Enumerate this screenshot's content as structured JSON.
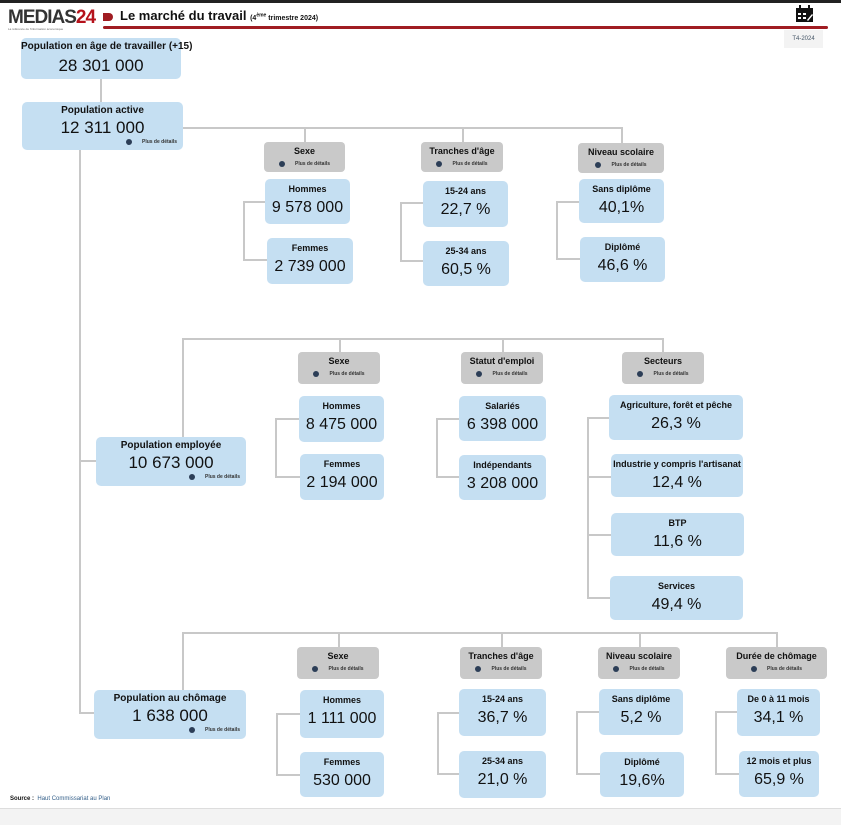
{
  "header": {
    "logo": "MEDIAS24",
    "logo_tagline": "La référence de l'information économique",
    "title": "Le marché du travail",
    "subtitle_prefix": "(4",
    "subtitle_sup": "ème",
    "subtitle_suffix": " trimestre 2024)",
    "period": "T4-2024",
    "calendar_icon": "calendar-icon",
    "accent": "#a01c22"
  },
  "more": "Plus de détails",
  "working_age": {
    "label": "Population en âge de travailler (+15)",
    "value": "28 301 000"
  },
  "active": {
    "label": "Population active",
    "value": "12 311 000",
    "sexe": {
      "label": "Sexe",
      "items": [
        {
          "label": "Hommes",
          "value": "9 578 000"
        },
        {
          "label": "Femmes",
          "value": "2 739 000"
        }
      ]
    },
    "age": {
      "label": "Tranches d'âge",
      "items": [
        {
          "label": "15-24 ans",
          "value": "22,7 %"
        },
        {
          "label": "25-34 ans",
          "value": "60,5 %"
        }
      ]
    },
    "school": {
      "label": "Niveau scolaire",
      "items": [
        {
          "label": "Sans diplôme",
          "value": "40,1%"
        },
        {
          "label": "Diplômé",
          "value": "46,6 %"
        }
      ]
    }
  },
  "employed": {
    "label": "Population employée",
    "value": "10 673 000",
    "sexe": {
      "label": "Sexe",
      "items": [
        {
          "label": "Hommes",
          "value": "8 475 000"
        },
        {
          "label": "Femmes",
          "value": "2 194 000"
        }
      ]
    },
    "status": {
      "label": "Statut d'emploi",
      "items": [
        {
          "label": "Salariés",
          "value": "6 398 000"
        },
        {
          "label": "Indépendants",
          "value": "3 208 000"
        }
      ]
    },
    "sectors": {
      "label": "Secteurs",
      "items": [
        {
          "label": "Agriculture, forêt et pêche",
          "value": "26,3 %"
        },
        {
          "label": "Industrie y compris l'artisanat",
          "value": "12,4 %"
        },
        {
          "label": "BTP",
          "value": "11,6 %"
        },
        {
          "label": "Services",
          "value": "49,4 %"
        }
      ]
    }
  },
  "unemployed": {
    "label": "Population au chômage",
    "value": "1 638 000",
    "sexe": {
      "label": "Sexe",
      "items": [
        {
          "label": "Hommes",
          "value": "1 111 000"
        },
        {
          "label": "Femmes",
          "value": "530 000"
        }
      ]
    },
    "age": {
      "label": "Tranches d'âge",
      "items": [
        {
          "label": "15-24 ans",
          "value": "36,7 %"
        },
        {
          "label": "25-34 ans",
          "value": "21,0 %"
        }
      ]
    },
    "school": {
      "label": "Niveau scolaire",
      "items": [
        {
          "label": "Sans diplôme",
          "value": "5,2 %"
        },
        {
          "label": "Diplômé",
          "value": "19,6%"
        }
      ]
    },
    "duration": {
      "label": "Durée de chômage",
      "items": [
        {
          "label": "De 0 à 11 mois",
          "value": "34,1 %"
        },
        {
          "label": "12 mois et plus",
          "value": "65,9 %"
        }
      ]
    }
  },
  "source": {
    "label": "Source :",
    "value": "Haut Commissariat au Plan"
  }
}
